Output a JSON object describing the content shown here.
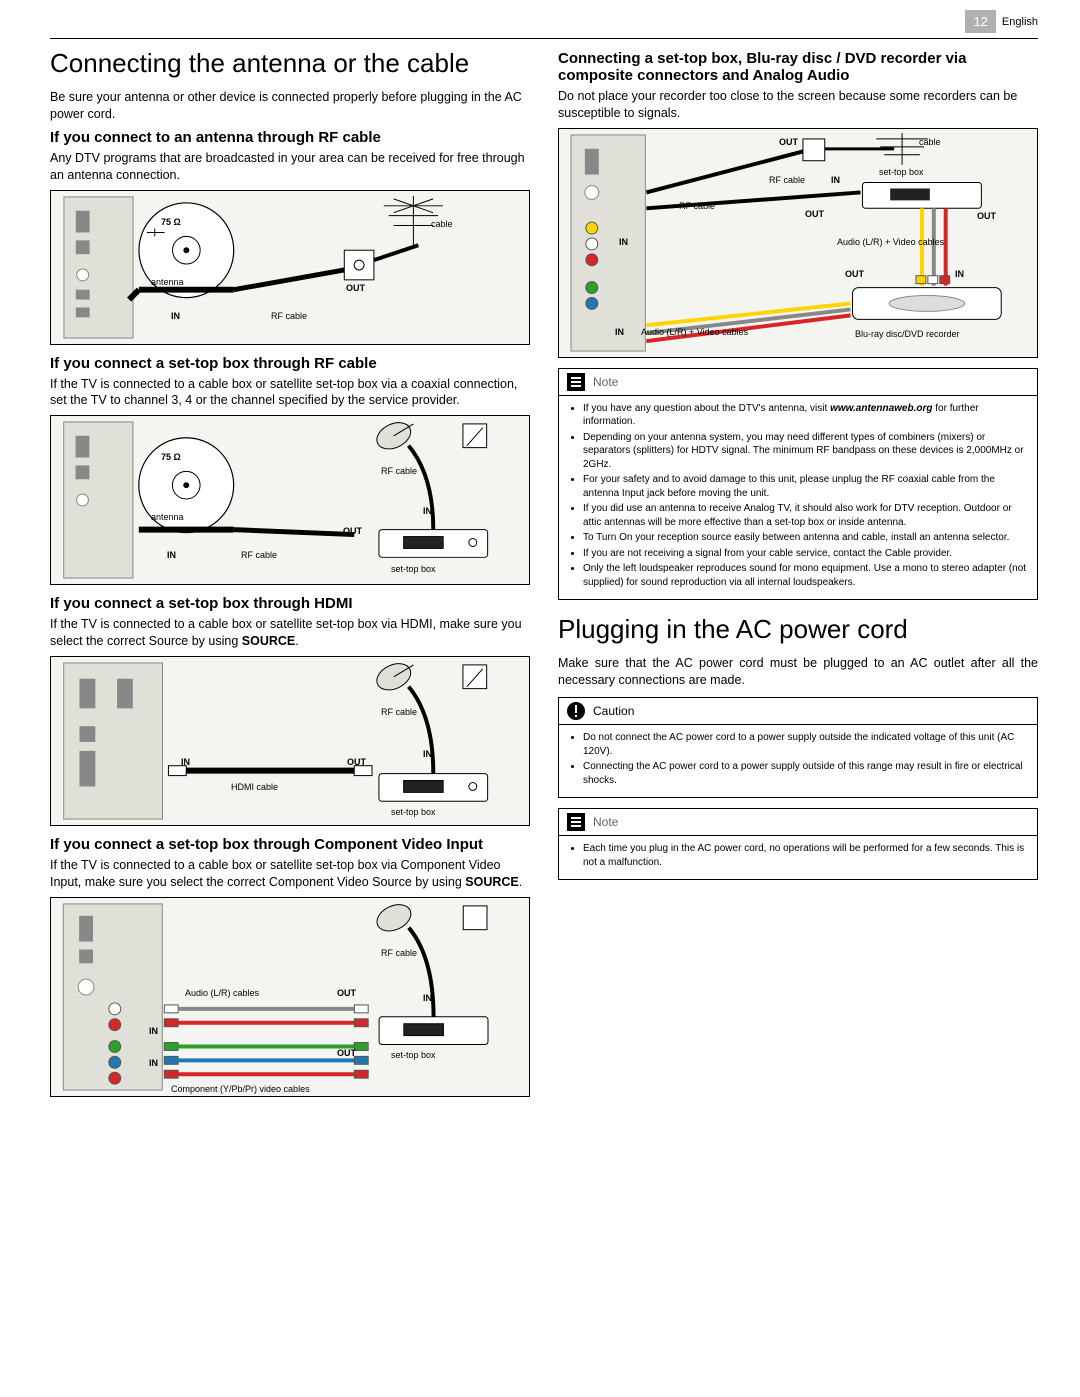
{
  "page": {
    "number": "12",
    "language": "English"
  },
  "left": {
    "title": "Connecting the antenna or the cable",
    "intro": "Be sure your antenna or other device is connected properly before plugging in the AC power cord.",
    "s1": {
      "heading": "If you connect to an antenna through RF cable",
      "body": "Any DTV programs that are broadcasted in your area can be received for free through an antenna connection.",
      "labels": {
        "ohm": "75 Ω",
        "antenna": "antenna",
        "in": "IN",
        "rfcable": "RF cable",
        "out": "OUT",
        "cable": "cable"
      }
    },
    "s2": {
      "heading": "If you connect a set-top box through RF cable",
      "body_pre": "If the TV is connected to a cable box or satellite set-top box via a coaxial connection, set the TV to channel 3, 4 or the channel specified by the service provider.",
      "labels": {
        "ohm": "75 Ω",
        "antenna": "antenna",
        "in": "IN",
        "rfcable": "RF cable",
        "out": "OUT",
        "in2": "IN",
        "stb": "set-top box",
        "rfcable2": "RF cable"
      }
    },
    "s3": {
      "heading": "If you connect a set-top box through HDMI",
      "body_pre": "If the TV is connected to a cable box or satellite set-top box via HDMI, make sure you select the correct Source by using ",
      "body_bold": "SOURCE",
      "body_post": ".",
      "labels": {
        "in": "IN",
        "hdmi": "HDMI cable",
        "out": "OUT",
        "rfcable": "RF cable",
        "in2": "IN",
        "stb": "set-top box"
      }
    },
    "s4": {
      "heading": "If you connect a set-top box through Component Video Input",
      "body_pre": "If the TV is connected to a cable box or satellite set-top box via Component Video Input, make sure you select the correct Component Video Source by using ",
      "body_bold": "SOURCE",
      "body_post": ".",
      "labels": {
        "audio": "Audio (L/R) cables",
        "in1": "IN",
        "in2": "IN",
        "component": "Component (Y/Pb/Pr) video cables",
        "out1": "OUT",
        "out2": "OUT",
        "rfcable": "RF cable",
        "in3": "IN",
        "stb": "set-top box"
      }
    }
  },
  "right": {
    "title": "Connecting a set-top box, Blu-ray disc / DVD recorder via composite connectors and Analog Audio",
    "intro": "Do not place your recorder too close to the screen because some recorders can be susceptible to signals.",
    "diagram_labels": {
      "out1": "OUT",
      "cable": "cable",
      "rfcable1": "RF cable",
      "in1": "IN",
      "stb": "set-top box",
      "rfcable2": "RF cable",
      "out2": "OUT",
      "out3": "OUT",
      "in2": "IN",
      "audio_video": "Audio (L/R) + Video cables",
      "out4": "OUT",
      "in3": "IN",
      "in4": "IN",
      "audio_video2": "Audio (L/R) + Video cables",
      "recorder": "Blu-ray disc/DVD recorder"
    },
    "note1": {
      "label": "Note",
      "items": [
        "If you have any question about the DTV's antenna, visit <b>www.antennaweb.org</b> for further information.",
        "Depending on your antenna system, you may need different types of combiners (mixers) or separators (splitters) for HDTV signal. The minimum RF bandpass on these devices is 2,000MHz or 2GHz.",
        "For your safety and to avoid damage to this unit, please unplug the RF coaxial cable from the antenna Input jack before moving the unit.",
        "If you did use an antenna to receive Analog TV, it should also work for DTV reception. Outdoor or attic antennas will be more effective than a set-top box or inside antenna.",
        "To Turn On your reception source easily between antenna and cable, install an antenna selector.",
        "If you are not receiving a signal from your cable service, contact the Cable provider.",
        "Only the left loudspeaker reproduces sound for mono equipment. Use a mono to stereo adapter (not supplied) for sound reproduction via all internal loudspeakers."
      ]
    },
    "title2": "Plugging in the AC power cord",
    "intro2": "Make sure that the AC power cord must be plugged to an AC outlet after all the necessary connections are made.",
    "caution": {
      "label": "Caution",
      "items": [
        "Do not connect the AC power cord to a power supply outside the indicated voltage of this unit (AC 120V).",
        "Connecting the AC power cord to a power supply outside of this range may result in fire or electrical shocks."
      ]
    },
    "note2": {
      "label": "Note",
      "items": [
        "Each time you plug in the AC power cord, no operations will be performed for a few seconds. This is not a malfunction."
      ]
    }
  },
  "colors": {
    "diagram_bg": "#f4f4f0",
    "tv_fill": "#e0e0d8",
    "tv_stroke": "#888888",
    "line": "#000000",
    "red": "#d62728",
    "white": "#ffffff",
    "yellow": "#ffd500",
    "green": "#2ca02c",
    "blue": "#1f77b4"
  }
}
